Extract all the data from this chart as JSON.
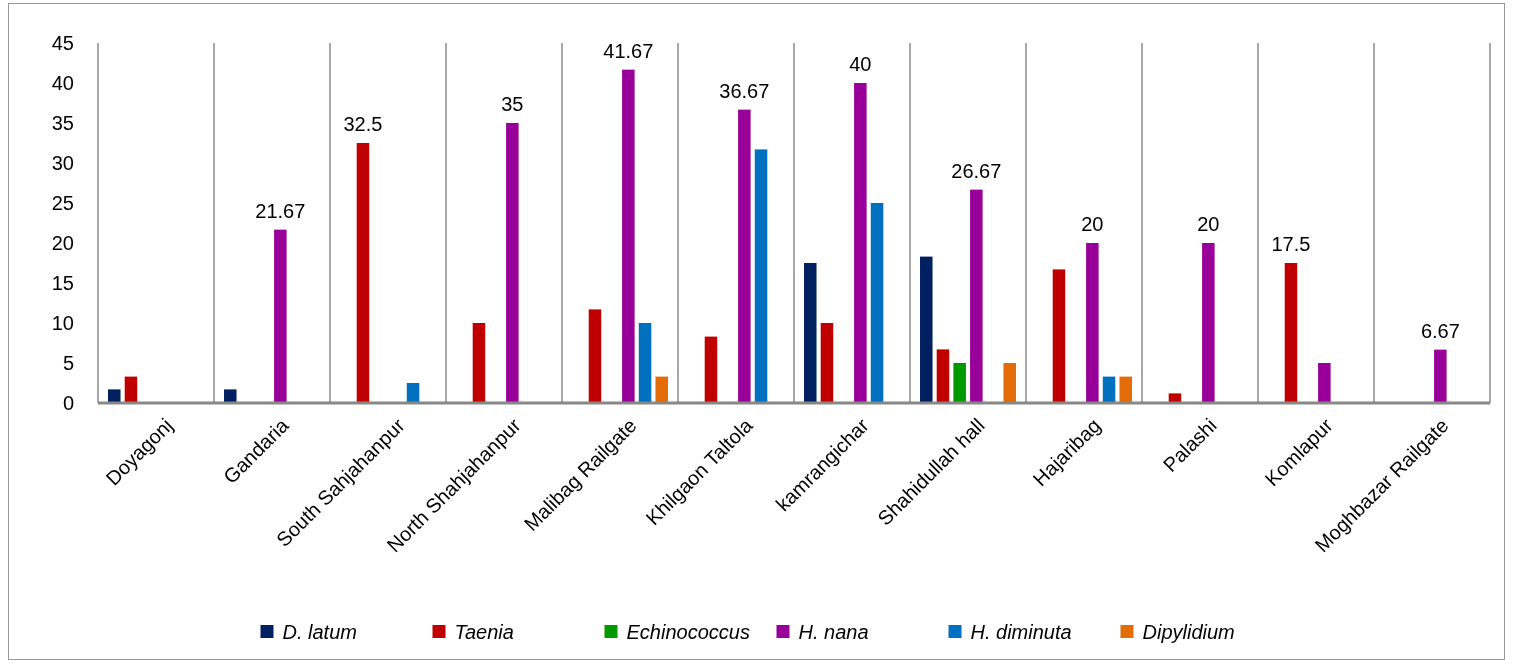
{
  "chart_data": {
    "type": "bar",
    "categories": [
      "Doyagonj",
      "Gandaria",
      "South Sahjahanpur",
      "North Shahjahanpur",
      "Malibag Railgate",
      "Khilgaon Taltola",
      "kamrangichar",
      "Shahidullah hall",
      "Hajaribag",
      "Palashi",
      "Komlapur",
      "Moghbazar Railgate"
    ],
    "series": [
      {
        "name": "D. latum",
        "color": "#002060",
        "values": [
          1.7,
          1.7,
          null,
          null,
          null,
          null,
          17.5,
          18.3,
          null,
          null,
          null,
          null
        ]
      },
      {
        "name": "Taenia",
        "color": "#c00000",
        "values": [
          3.3,
          null,
          32.5,
          10,
          11.7,
          8.3,
          10,
          6.7,
          16.7,
          1.2,
          17.5,
          null
        ],
        "value_labels": [
          null,
          null,
          "32.5",
          null,
          null,
          null,
          null,
          null,
          null,
          null,
          "17.5",
          null
        ]
      },
      {
        "name": "Echinococcus",
        "color": "#009900",
        "values": [
          null,
          null,
          null,
          null,
          null,
          null,
          null,
          5,
          null,
          null,
          null,
          null
        ]
      },
      {
        "name": "H. nana",
        "color": "#990099",
        "values": [
          null,
          21.67,
          null,
          35,
          41.67,
          36.67,
          40,
          26.67,
          20,
          20,
          5,
          6.67
        ],
        "value_labels": [
          null,
          "21.67",
          null,
          "35",
          "41.67",
          "36.67",
          "40",
          "26.67",
          "20",
          "20",
          null,
          "6.67"
        ]
      },
      {
        "name": "H. diminuta",
        "color": "#0070c0",
        "values": [
          null,
          null,
          2.5,
          null,
          10,
          31.7,
          25,
          null,
          3.3,
          null,
          null,
          null
        ]
      },
      {
        "name": "Dipylidium",
        "color": "#e36c09",
        "values": [
          null,
          null,
          null,
          null,
          3.3,
          null,
          null,
          5,
          3.3,
          null,
          null,
          null
        ]
      }
    ],
    "ylim": [
      0,
      45
    ],
    "yticks": [
      0,
      5,
      10,
      15,
      20,
      25,
      30,
      35,
      40,
      45
    ],
    "grid": "x",
    "legend": "bottom"
  }
}
